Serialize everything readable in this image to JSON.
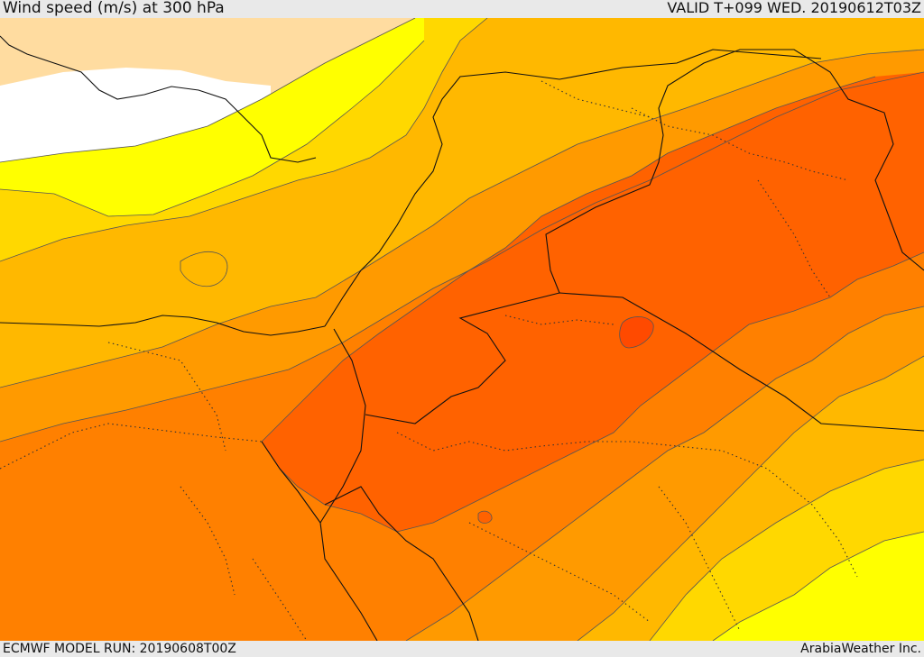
{
  "header": {
    "title": "Wind speed (m/s) at 300 hPa",
    "valid": "VALID T+099 WED. 20190612T03Z"
  },
  "footer": {
    "model_run": "ECMWF MODEL RUN: 20190608T00Z",
    "credit": "ArabiaWeather Inc."
  },
  "colors": {
    "land_pale": "#ffdca0",
    "white_band": "#ffffff",
    "yellow": "#ffff00",
    "gold": "#ffd800",
    "light_orange": "#ffb800",
    "orange": "#ff9a00",
    "dark_orange": "#ff8000",
    "red_orange": "#ff6200",
    "core": "#ff4a00"
  }
}
